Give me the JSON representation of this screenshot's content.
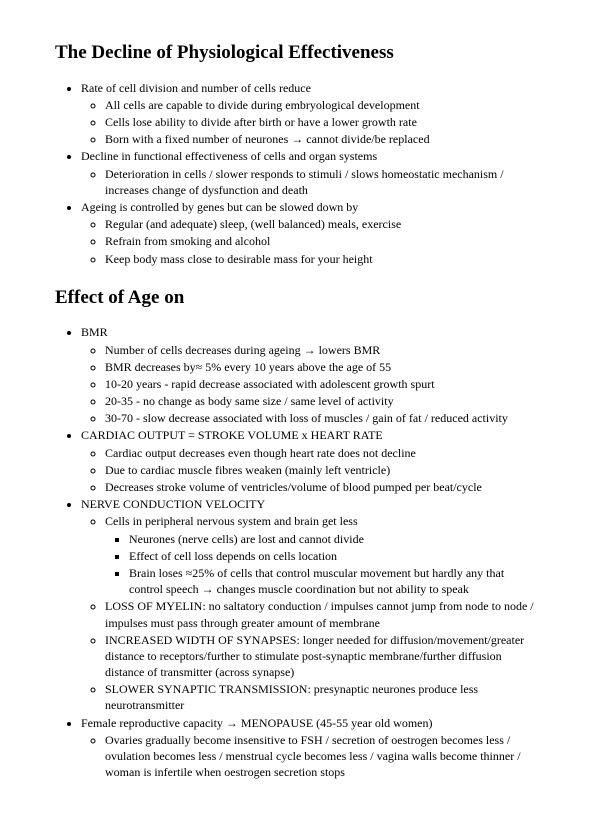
{
  "heading1": "The Decline of Physiological Effectiveness",
  "sec1": {
    "i0": {
      "t": "Rate of cell division and number of cells reduce",
      "s": [
        "All cells are capable to divide during embryological development",
        "Cells lose ability to divide after birth or have a lower growth rate",
        "Born with a fixed number of neurones → cannot divide/be replaced"
      ]
    },
    "i1": {
      "t": "Decline in functional effectiveness of cells and organ systems",
      "s": [
        "Deterioration in cells / slower responds to stimuli / slows homeostatic mechanism / increases change of dysfunction and death"
      ]
    },
    "i2": {
      "t": "Ageing is controlled by genes but can be slowed down by",
      "s": [
        "Regular (and adequate) sleep, (well balanced) meals, exercise",
        "Refrain from smoking and alcohol",
        "Keep body mass close to desirable mass for your height"
      ]
    }
  },
  "heading2": "Effect of Age on",
  "sec2": {
    "i0": {
      "t": "BMR",
      "s": [
        "Number of cells decreases during ageing → lowers BMR",
        "BMR decreases by≈ 5% every 10 years above the age of 55",
        "10-20 years - rapid decrease associated with adolescent growth spurt",
        "20-35 - no change as body same size / same level of activity",
        "30-70 - slow decrease associated with loss of muscles / gain of fat / reduced activity"
      ]
    },
    "i1": {
      "t": "CARDIAC OUTPUT = STROKE VOLUME  x  HEART RATE",
      "s": [
        "Cardiac output decreases even though heart rate does not decline",
        "Due to cardiac muscle fibres weaken (mainly left ventricle)",
        "Decreases stroke volume of ventricles/volume of blood pumped per beat/cycle"
      ]
    },
    "i2": {
      "t": "NERVE CONDUCTION VELOCITY",
      "s0": {
        "t": "Cells in peripheral nervous system and brain get less",
        "ss": [
          "Neurones (nerve cells) are lost and cannot divide",
          "Effect of cell loss depends on cells location",
          "Brain loses ≈25% of cells that control muscular movement but hardly any that control speech → changes muscle coordination but not ability to speak"
        ]
      },
      "s1": "LOSS OF MYELIN: no saltatory conduction / impulses cannot jump from node to node / impulses must pass through greater amount of membrane",
      "s2": "INCREASED WIDTH OF SYNAPSES: longer needed for diffusion/movement/greater distance to receptors/further to stimulate post-synaptic membrane/further diffusion distance of transmitter (across synapse)",
      "s3": "SLOWER SYNAPTIC TRANSMISSION: presynaptic neurones produce less neurotransmitter"
    },
    "i3": {
      "t": "Female reproductive capacity → MENOPAUSE (45-55 year old women)",
      "s": [
        "Ovaries gradually become insensitive to FSH / secretion of oestrogen becomes less / ovulation becomes less / menstrual cycle becomes less /  vagina walls become thinner / woman is infertile when oestrogen secretion stops"
      ]
    }
  }
}
